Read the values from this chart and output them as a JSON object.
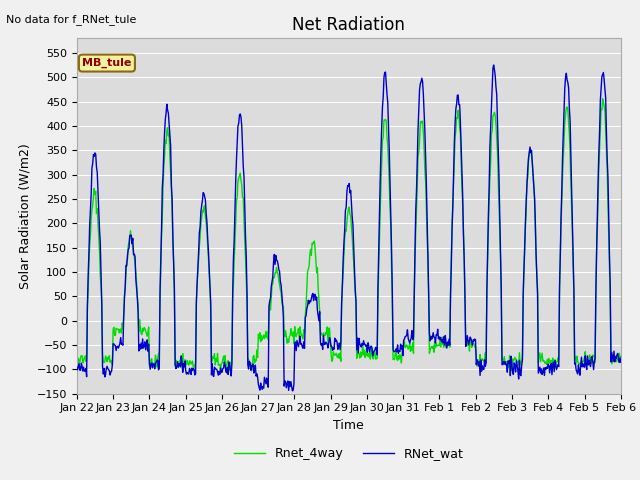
{
  "title": "Net Radiation",
  "ylabel": "Solar Radiation (W/m2)",
  "xlabel": "Time",
  "ylim": [
    -150,
    580
  ],
  "yticks": [
    -150,
    -100,
    -50,
    0,
    50,
    100,
    150,
    200,
    250,
    300,
    350,
    400,
    450,
    500,
    550
  ],
  "no_data_text": "No data for f_RNet_tule",
  "mb_label": "MB_tule",
  "legend_labels": [
    "RNet_wat",
    "Rnet_4way"
  ],
  "line_colors": [
    "#0000cc",
    "#00dd00"
  ],
  "bg_color": "#dcdcdc",
  "fig_color": "#f0f0f0",
  "n_days": 15,
  "wat_peaks": [
    350,
    170,
    440,
    255,
    425,
    130,
    50,
    280,
    510,
    495,
    465,
    520,
    360,
    505,
    515
  ],
  "way_peaks": [
    260,
    170,
    400,
    230,
    305,
    100,
    160,
    230,
    415,
    415,
    430,
    430,
    350,
    440,
    450
  ],
  "night_vals_wat": [
    -100,
    -50,
    -90,
    -105,
    -100,
    -130,
    -50,
    -50,
    -60,
    -35,
    -45,
    -90,
    -100,
    -95,
    -80
  ],
  "night_vals_way": [
    -80,
    -20,
    -85,
    -85,
    -85,
    -30,
    -25,
    -70,
    -75,
    -55,
    -50,
    -85,
    -80,
    -85,
    -80
  ],
  "title_fontsize": 12,
  "tick_fontsize": 8,
  "label_fontsize": 9
}
